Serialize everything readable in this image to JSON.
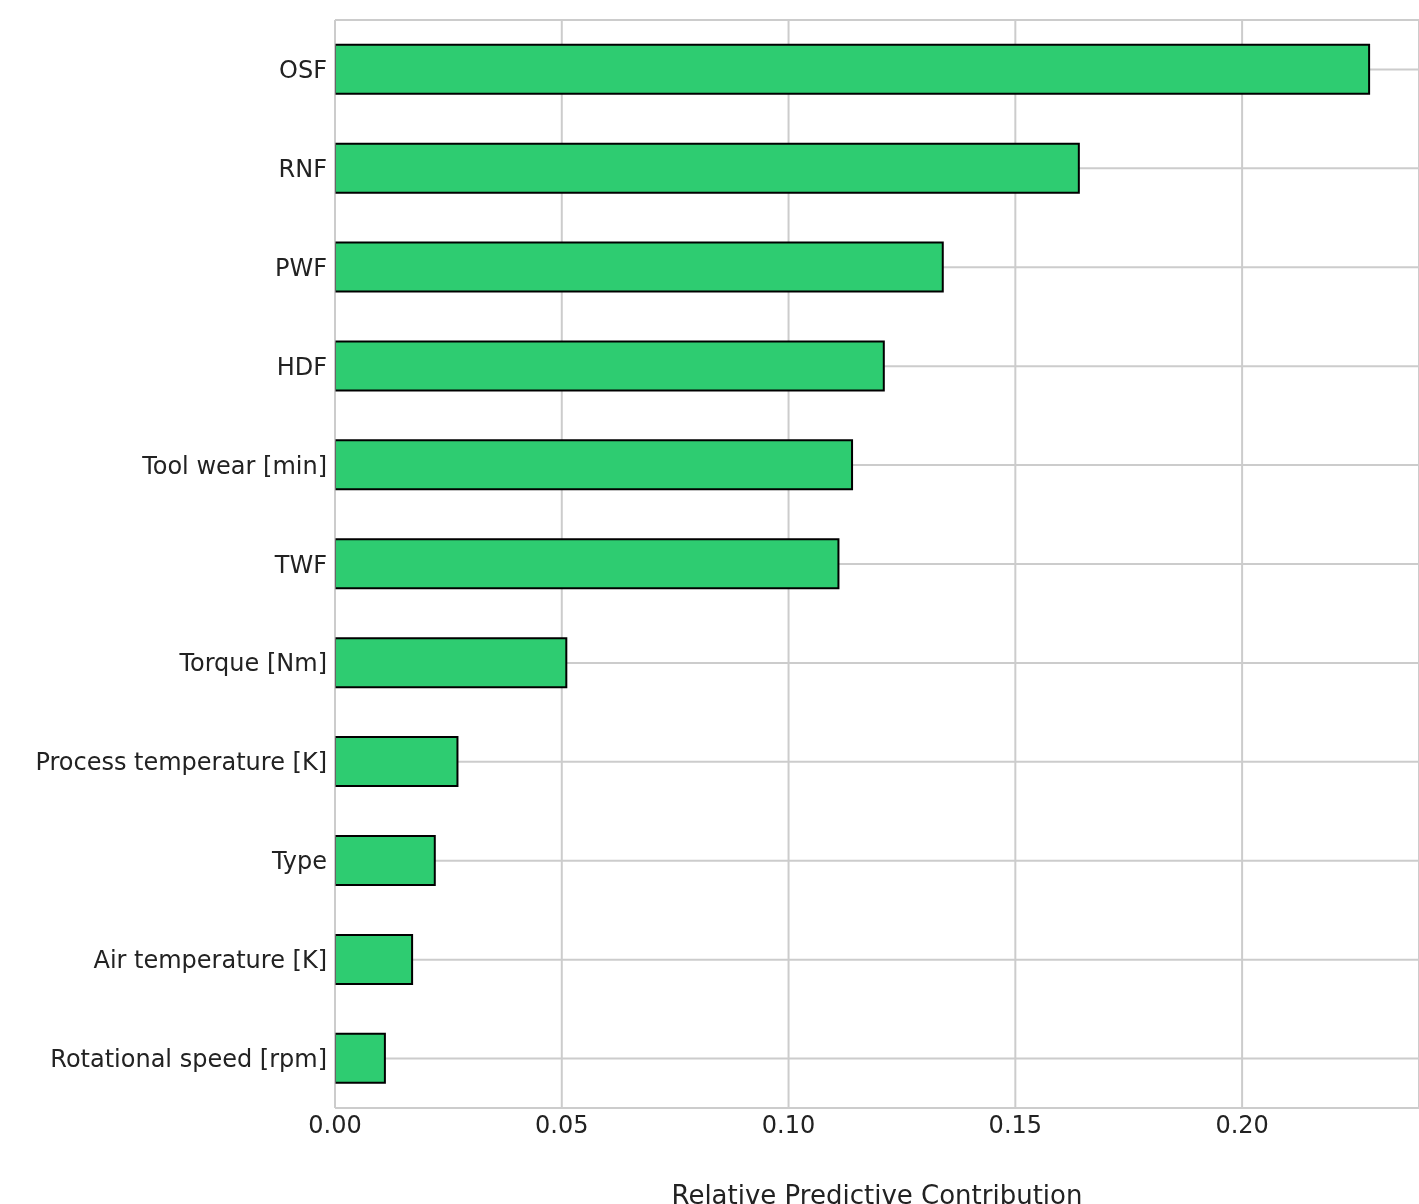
{
  "chart_data": {
    "type": "bar",
    "orientation": "horizontal",
    "xlabel": "Relative Predictive Contribution",
    "categories": [
      "OSF",
      "RNF",
      "PWF",
      "HDF",
      "Tool wear [min]",
      "TWF",
      "Torque [Nm]",
      "Process temperature [K]",
      "Type",
      "Air temperature [K]",
      "Rotational speed [rpm]"
    ],
    "values": [
      0.228,
      0.164,
      0.134,
      0.121,
      0.114,
      0.111,
      0.051,
      0.027,
      0.022,
      0.017,
      0.011
    ],
    "color": "#2ecc71",
    "xlim": [
      0,
      0.239
    ],
    "xticks": [
      {
        "value": 0,
        "label": "0.00"
      },
      {
        "value": 0.05,
        "label": "0.05"
      },
      {
        "value": 0.1,
        "label": "0.10"
      },
      {
        "value": 0.15,
        "label": "0.15"
      },
      {
        "value": 0.2,
        "label": "0.20"
      }
    ],
    "grid": true
  }
}
